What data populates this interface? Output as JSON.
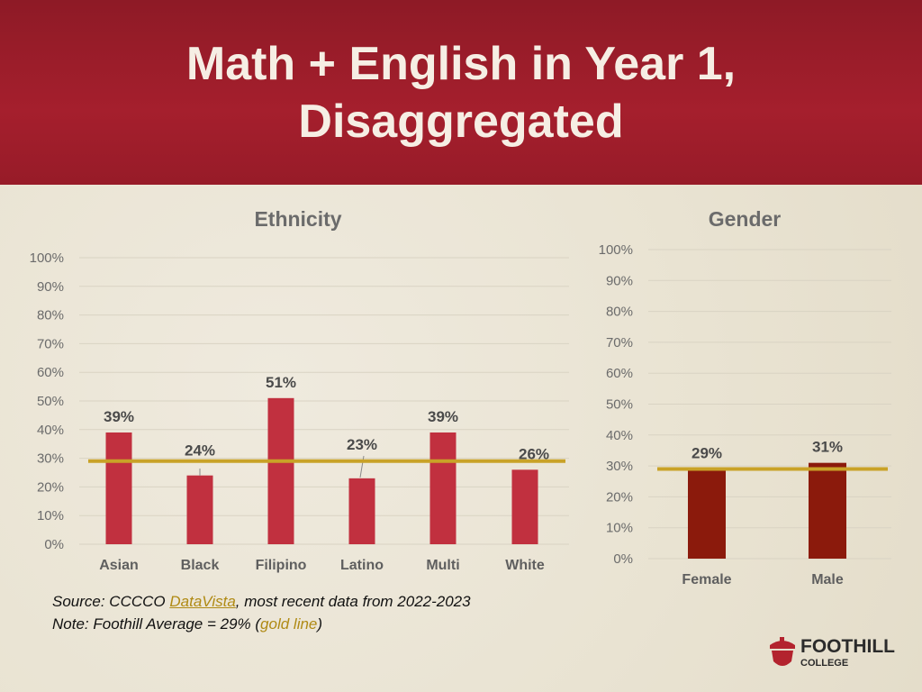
{
  "slide": {
    "title_line1": "Math + English in Year 1,",
    "title_line2": "Disaggregated"
  },
  "chart_data": [
    {
      "type": "bar",
      "title": "Ethnicity",
      "categories": [
        "Asian",
        "Black",
        "Filipino",
        "Latino",
        "Multi",
        "White"
      ],
      "values": [
        39,
        24,
        51,
        23,
        39,
        26
      ],
      "data_labels": [
        "39%",
        "24%",
        "51%",
        "23%",
        "39%",
        "26%"
      ],
      "yticks": [
        "0%",
        "10%",
        "20%",
        "30%",
        "40%",
        "50%",
        "60%",
        "70%",
        "80%",
        "90%",
        "100%"
      ],
      "ylim": [
        0,
        100
      ],
      "reference_line": 29,
      "bar_color": "#c1303f",
      "line_color": "#c9a227"
    },
    {
      "type": "bar",
      "title": "Gender",
      "categories": [
        "Female",
        "Male"
      ],
      "values": [
        29,
        31
      ],
      "data_labels": [
        "29%",
        "31%"
      ],
      "yticks": [
        "0%",
        "10%",
        "20%",
        "30%",
        "40%",
        "50%",
        "60%",
        "70%",
        "80%",
        "90%",
        "100%"
      ],
      "ylim": [
        0,
        100
      ],
      "reference_line": 29,
      "bar_color": "#8b1a0c",
      "line_color": "#c9a227"
    }
  ],
  "footer": {
    "source_prefix": "Source: CCCCO ",
    "source_link": "DataVista",
    "source_suffix": ", most recent data from 2022-2023",
    "note_prefix": "Note: Foothill Average = 29% (",
    "note_gold": "gold line",
    "note_suffix": ")"
  },
  "logo": {
    "name": "FOOTHILL",
    "sub": "COLLEGE",
    "color": "#b3232e"
  }
}
